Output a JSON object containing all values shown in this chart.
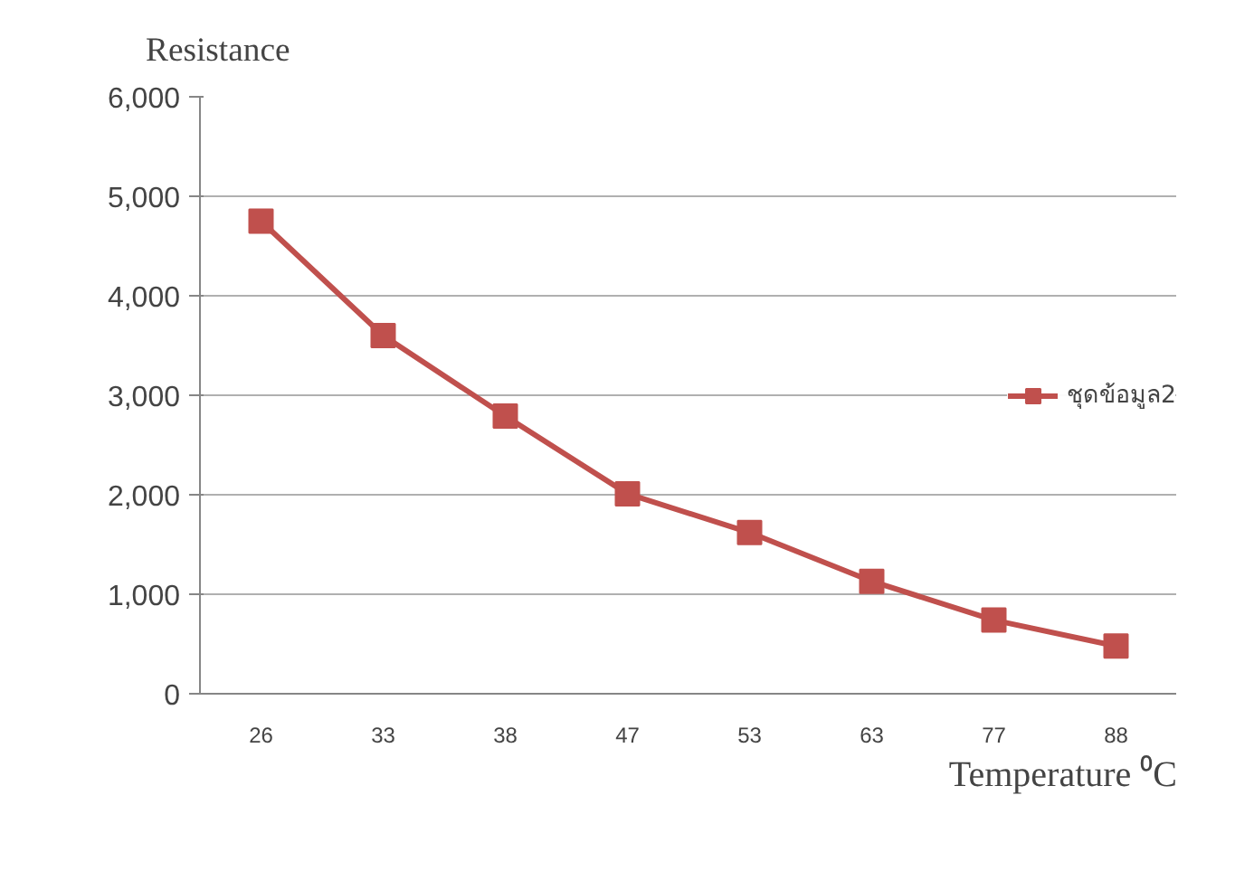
{
  "chart_data": {
    "type": "line",
    "ylabel": "Resistance",
    "xlabel": "Temperature ⁰C",
    "categories": [
      "26",
      "33",
      "38",
      "47",
      "53",
      "63",
      "77",
      "88"
    ],
    "series": [
      {
        "name": "ชุดข้อมูล2",
        "color": "#c0504d",
        "values": [
          4750,
          3600,
          2790,
          2010,
          1620,
          1130,
          740,
          480
        ]
      }
    ],
    "ylim": [
      0,
      6000
    ],
    "yticks": [
      {
        "value": 0,
        "label": "0"
      },
      {
        "value": 1000,
        "label": "1,000"
      },
      {
        "value": 2000,
        "label": "2,000"
      },
      {
        "value": 3000,
        "label": "3,000"
      },
      {
        "value": 4000,
        "label": "4,000"
      },
      {
        "value": 5000,
        "label": "5,000"
      },
      {
        "value": 6000,
        "label": "6,000"
      }
    ],
    "grid": "y",
    "legend": "right",
    "marker": "square",
    "line_style": "solid"
  }
}
